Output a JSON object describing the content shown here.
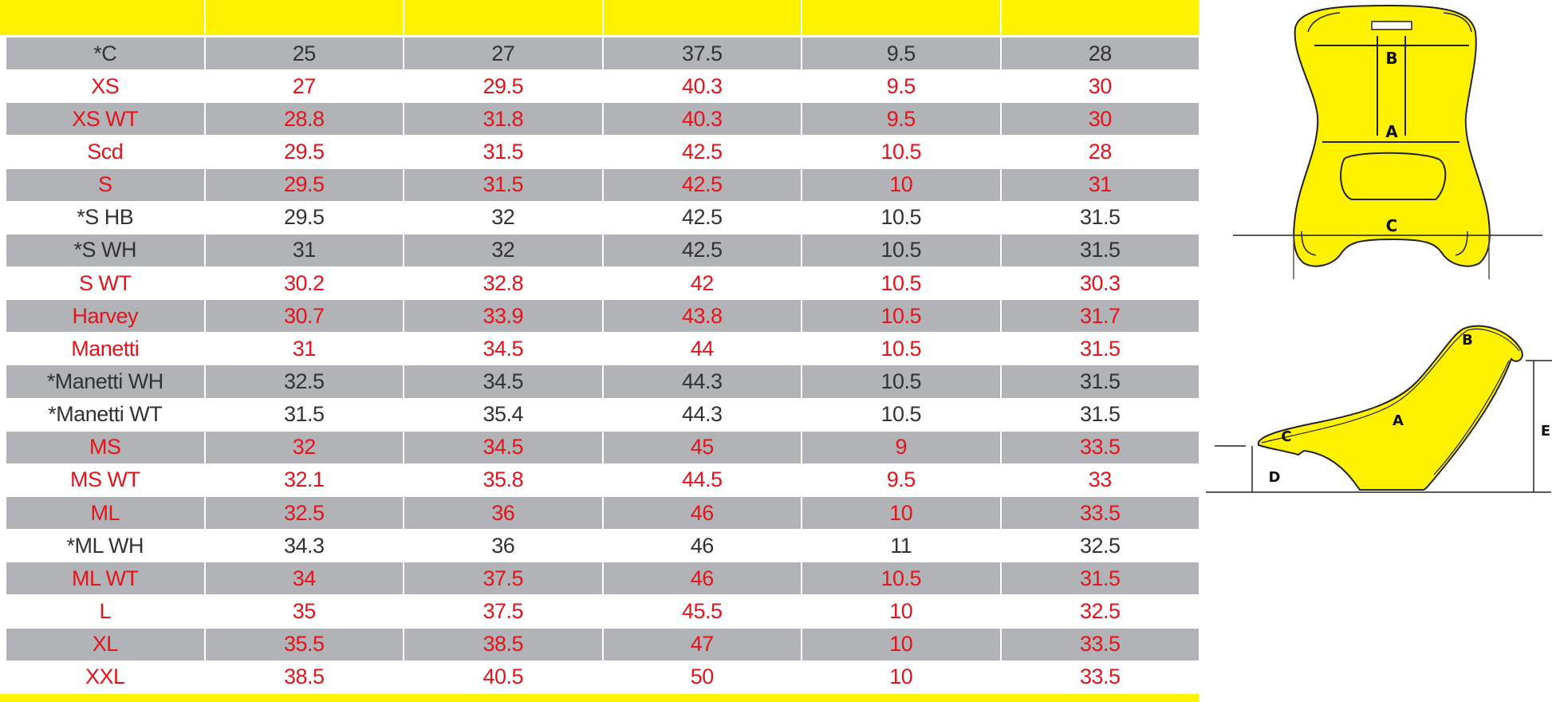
{
  "table": {
    "header": [
      "",
      "",
      "",
      "",
      "",
      ""
    ],
    "rows": [
      {
        "cells": [
          "*C",
          "25",
          "27",
          "37.5",
          "9.5",
          "28"
        ],
        "color": "black"
      },
      {
        "cells": [
          "XS",
          "27",
          "29.5",
          "40.3",
          "9.5",
          "30"
        ],
        "color": "red"
      },
      {
        "cells": [
          "XS WT",
          "28.8",
          "31.8",
          "40.3",
          "9.5",
          "30"
        ],
        "color": "red"
      },
      {
        "cells": [
          "Scd",
          "29.5",
          "31.5",
          "42.5",
          "10.5",
          "28"
        ],
        "color": "red"
      },
      {
        "cells": [
          "S",
          "29.5",
          "31.5",
          "42.5",
          "10",
          "31"
        ],
        "color": "red"
      },
      {
        "cells": [
          "*S HB",
          "29.5",
          "32",
          "42.5",
          "10.5",
          "31.5"
        ],
        "color": "black"
      },
      {
        "cells": [
          "*S WH",
          "31",
          "32",
          "42.5",
          "10.5",
          "31.5"
        ],
        "color": "black"
      },
      {
        "cells": [
          "S WT",
          "30.2",
          "32.8",
          "42",
          "10.5",
          "30.3"
        ],
        "color": "red"
      },
      {
        "cells": [
          "Harvey",
          "30.7",
          "33.9",
          "43.8",
          "10.5",
          "31.7"
        ],
        "color": "red"
      },
      {
        "cells": [
          "Manetti",
          "31",
          "34.5",
          "44",
          "10.5",
          "31.5"
        ],
        "color": "red"
      },
      {
        "cells": [
          "*Manetti WH",
          "32.5",
          "34.5",
          "44.3",
          "10.5",
          "31.5"
        ],
        "color": "black"
      },
      {
        "cells": [
          "*Manetti WT",
          "31.5",
          "35.4",
          "44.3",
          "10.5",
          "31.5"
        ],
        "color": "black"
      },
      {
        "cells": [
          "MS",
          "32",
          "34.5",
          "45",
          "9",
          "33.5"
        ],
        "color": "red"
      },
      {
        "cells": [
          "MS WT",
          "32.1",
          "35.8",
          "44.5",
          "9.5",
          "33"
        ],
        "color": "red"
      },
      {
        "cells": [
          "ML",
          "32.5",
          "36",
          "46",
          "10",
          "33.5"
        ],
        "color": "red"
      },
      {
        "cells": [
          "*ML WH",
          "34.3",
          "36",
          "46",
          "11",
          "32.5"
        ],
        "color": "black"
      },
      {
        "cells": [
          "ML WT",
          "34",
          "37.5",
          "46",
          "10.5",
          "31.5"
        ],
        "color": "red"
      },
      {
        "cells": [
          "L",
          "35",
          "37.5",
          "45.5",
          "10",
          "32.5"
        ],
        "color": "red"
      },
      {
        "cells": [
          "XL",
          "35.5",
          "38.5",
          "47",
          "10",
          "33.5"
        ],
        "color": "red"
      },
      {
        "cells": [
          "XXL",
          "38.5",
          "40.5",
          "50",
          "10",
          "33.5"
        ],
        "color": "red"
      }
    ]
  },
  "diagram_front": {
    "labels": {
      "a": "A",
      "b": "B",
      "c": "C"
    }
  },
  "diagram_side": {
    "labels": {
      "a": "A",
      "b": "B",
      "c": "C",
      "d": "D",
      "e": "E"
    }
  },
  "colors": {
    "header": "#fff200",
    "stripe": "#b1b3b6",
    "red_text": "#e2151c",
    "black_text": "#333333",
    "seat": "#fff200"
  }
}
